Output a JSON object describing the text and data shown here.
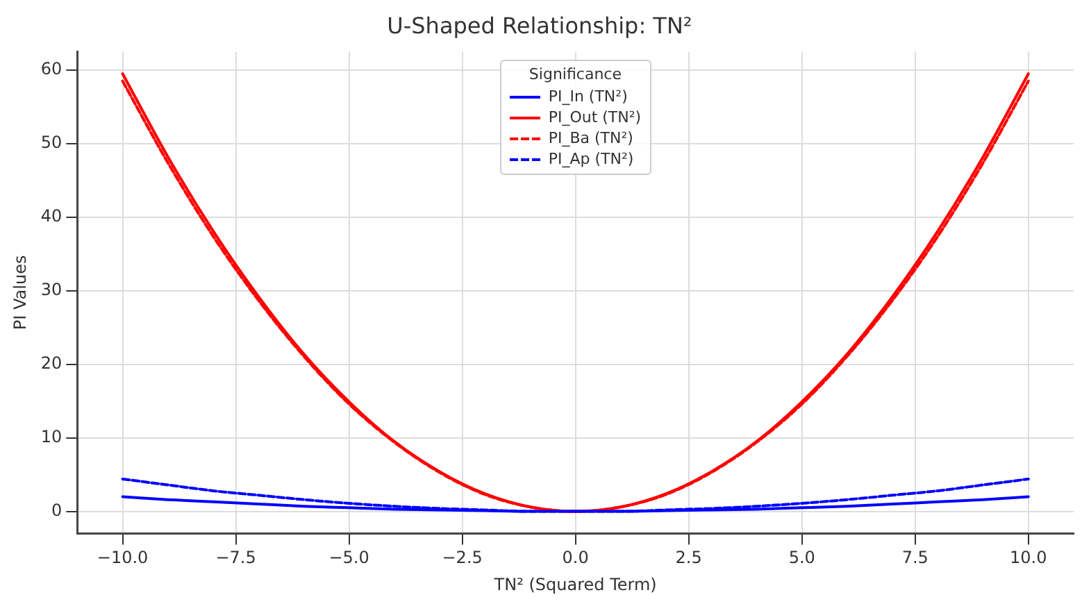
{
  "chart_data": {
    "type": "line",
    "title": "U-Shaped Relationship: TN²",
    "xlabel": "TN² (Squared Term)",
    "ylabel": "PI Values",
    "legend_title": "Significance",
    "legend": "top",
    "grid": true,
    "marker": "none",
    "x": [
      -10,
      -9,
      -8,
      -7,
      -6,
      -5,
      -4,
      -3,
      -2,
      -1,
      0,
      1,
      2,
      3,
      4,
      5,
      6,
      7,
      8,
      9,
      10
    ],
    "xlim": [
      -11,
      11
    ],
    "xticks": [
      {
        "value": -10,
        "label": "−10.0"
      },
      {
        "value": -7.5,
        "label": "−7.5"
      },
      {
        "value": -5,
        "label": "−5.0"
      },
      {
        "value": -2.5,
        "label": "−2.5"
      },
      {
        "value": 0,
        "label": "0.0"
      },
      {
        "value": 2.5,
        "label": "2.5"
      },
      {
        "value": 5,
        "label": "5.0"
      },
      {
        "value": 7.5,
        "label": "7.5"
      },
      {
        "value": 10,
        "label": "10.0"
      }
    ],
    "ylim": [
      -3,
      62.5
    ],
    "yticks": [
      0,
      10,
      20,
      30,
      40,
      50,
      60
    ],
    "series": [
      {
        "name": "PI_In (TN²)",
        "color": "#0000ff",
        "line_style": "solid",
        "values": [
          2.0,
          1.6,
          1.3,
          1.0,
          0.7,
          0.5,
          0.3,
          0.2,
          0.1,
          0.0,
          0,
          0.0,
          0.1,
          0.2,
          0.3,
          0.5,
          0.7,
          1.0,
          1.3,
          1.6,
          2.0
        ]
      },
      {
        "name": "PI_Out (TN²)",
        "color": "#ff0000",
        "line_style": "solid",
        "values": [
          59.5,
          48.2,
          38.1,
          29.2,
          21.4,
          14.9,
          9.5,
          5.4,
          2.4,
          0.6,
          0,
          0.6,
          2.4,
          5.4,
          9.5,
          14.9,
          21.4,
          29.2,
          38.1,
          48.2,
          59.5
        ]
      },
      {
        "name": "PI_Ba (TN²)",
        "color": "#ff0000",
        "line_style": "dashed",
        "values": [
          58.5,
          47.4,
          37.4,
          28.7,
          21.1,
          14.6,
          9.4,
          5.3,
          2.3,
          0.6,
          0,
          0.6,
          2.3,
          5.3,
          9.4,
          14.6,
          21.1,
          28.7,
          37.4,
          47.4,
          58.5
        ]
      },
      {
        "name": "PI_Ap (TN²)",
        "color": "#0000ff",
        "line_style": "dashed",
        "values": [
          4.4,
          3.6,
          2.8,
          2.2,
          1.6,
          1.1,
          0.7,
          0.4,
          0.2,
          0.0,
          0,
          0.0,
          0.2,
          0.4,
          0.7,
          1.1,
          1.6,
          2.2,
          2.8,
          3.6,
          4.4
        ]
      }
    ]
  }
}
